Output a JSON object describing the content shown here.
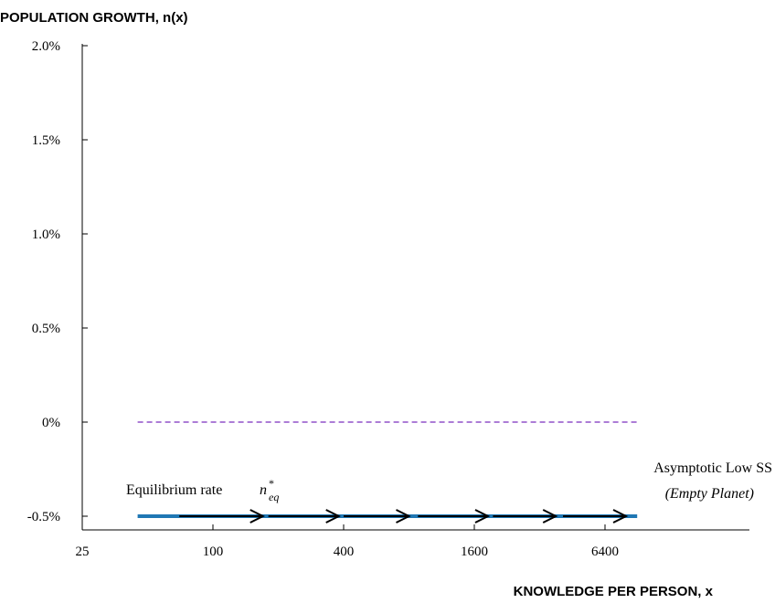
{
  "chart_data": {
    "type": "line",
    "title": "",
    "ylabel": "POPULATION GROWTH, n(x)",
    "xlabel": "KNOWLEDGE PER PERSON, x",
    "x_scale": "log",
    "xlim": [
      23,
      20000
    ],
    "ylim": [
      -0.6,
      2.0
    ],
    "x_ticks": [
      25,
      100,
      400,
      1600,
      6400
    ],
    "x_tick_labels": [
      "25",
      "100",
      "400",
      "1600",
      "6400"
    ],
    "y_ticks": [
      -0.5,
      0,
      0.5,
      1.0,
      1.5,
      2.0
    ],
    "y_tick_labels": [
      "-0.5%",
      "0%",
      "0.5%",
      "1.0%",
      "1.5%",
      "2.0%"
    ],
    "grid": false,
    "series": [
      {
        "style": "solid",
        "color": "#1f77b4",
        "x": [
          45,
          9000
        ],
        "y": [
          -0.5,
          -0.5
        ]
      },
      {
        "style": "dashed",
        "color": "#7b2fbe",
        "x": [
          45,
          9000
        ],
        "y": [
          0,
          0
        ]
      }
    ],
    "arrows": [
      {
        "x_from": 70,
        "x_to": 170
      },
      {
        "x_from": 180,
        "x_to": 380
      },
      {
        "x_from": 400,
        "x_to": 800
      },
      {
        "x_from": 880,
        "x_to": 1850
      },
      {
        "x_from": 1950,
        "x_to": 3800
      },
      {
        "x_from": 4100,
        "x_to": 8000
      }
    ],
    "annotations": {
      "equilibrium_label": "Equilibrium rate",
      "equilibrium_symbol": "n",
      "equilibrium_superscript": "*",
      "equilibrium_subscript": "eq",
      "asymptotic_label": "Asymptotic Low SS",
      "asymptotic_sublabel": "(Empty Planet)"
    },
    "colors": {
      "steady_state_line": "#1f77b4",
      "zero_line": "#7b2fbe",
      "arrows": "#000000"
    }
  }
}
